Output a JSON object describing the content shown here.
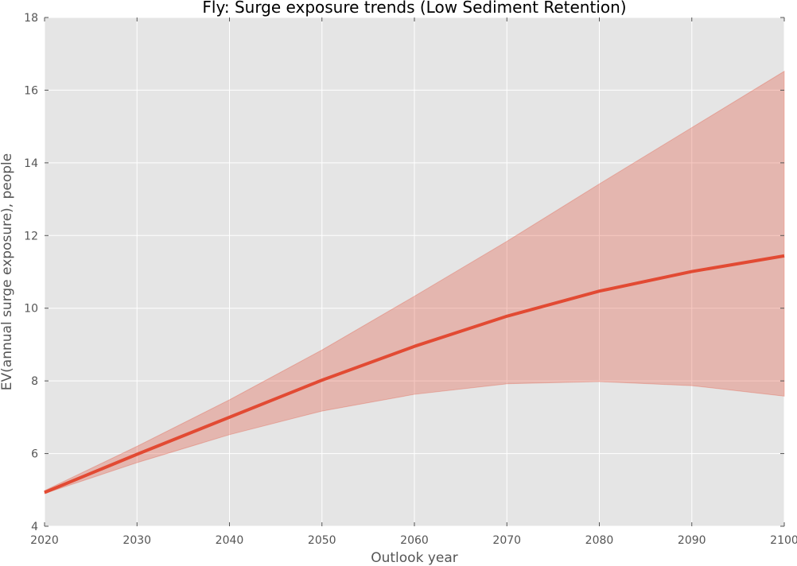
{
  "chart_data": {
    "type": "line",
    "title": "Fly: Surge exposure trends (Low Sediment Retention)",
    "xlabel": "Outlook year",
    "ylabel": "EV(annual surge exposure), people",
    "xlim": [
      2020,
      2100
    ],
    "ylim": [
      4,
      18
    ],
    "xticks": [
      2020,
      2030,
      2040,
      2050,
      2060,
      2070,
      2080,
      2090,
      2100
    ],
    "yticks": [
      4,
      6,
      8,
      10,
      12,
      14,
      16,
      18
    ],
    "grid": true,
    "legend": "none",
    "x": [
      2020,
      2030,
      2040,
      2050,
      2060,
      2070,
      2080,
      2090,
      2100
    ],
    "series": [
      {
        "values": [
          4.93,
          5.98,
          7.0,
          8.02,
          8.95,
          9.78,
          10.47,
          11.01,
          11.44
        ],
        "band_upper": [
          4.98,
          6.2,
          7.48,
          8.85,
          10.33,
          11.84,
          13.42,
          14.97,
          16.52
        ],
        "band_lower": [
          4.9,
          5.75,
          6.52,
          7.17,
          7.63,
          7.92,
          7.98,
          7.87,
          7.58
        ],
        "line_color": "#E24A33",
        "band_color": "#E24A33",
        "band_opacity": 0.3
      }
    ],
    "plot_background": "#E5E5E5",
    "grid_color": "#FFFFFF"
  }
}
